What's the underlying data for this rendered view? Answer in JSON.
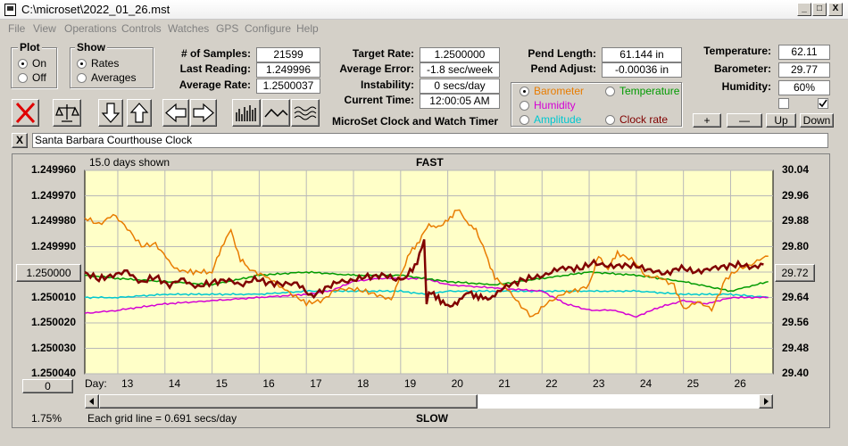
{
  "window": {
    "title": "C:\\microset\\2022_01_26.mst",
    "min": "_",
    "max": "□",
    "close": "X"
  },
  "menu": [
    "File",
    "View",
    "Operations",
    "Controls",
    "Watches",
    "GPS",
    "Configure",
    "Help"
  ],
  "plot_group": {
    "title": "Plot",
    "on": "On",
    "off": "Off",
    "selected": "On"
  },
  "show_group": {
    "title": "Show",
    "rates": "Rates",
    "averages": "Averages",
    "selected": "Rates"
  },
  "stats": {
    "samples_label": "# of Samples:",
    "samples": "21599",
    "last_reading_label": "Last Reading:",
    "last_reading": "1.249996",
    "avg_rate_label": "Average Rate:",
    "avg_rate": "1.2500037",
    "target_rate_label": "Target Rate:",
    "target_rate": "1.2500000",
    "avg_error_label": "Average Error:",
    "avg_error": "-1.8 sec/week",
    "instability_label": "Instability:",
    "instability": "0 secs/day",
    "current_time_label": "Current Time:",
    "current_time": "12:00:05 AM",
    "pend_length_label": "Pend Length:",
    "pend_length": "61.144 in",
    "pend_adjust_label": "Pend Adjust:",
    "pend_adjust": "-0.00036 in",
    "temperature_label": "Temperature:",
    "temperature": "62.11",
    "barometer_label": "Barometer:",
    "barometer": "29.77",
    "humidity_label": "Humidity:",
    "humidity": "60%"
  },
  "app_caption": "MicroSet Clock and Watch Timer",
  "sensor_select": {
    "selected": "Barometer",
    "options": [
      {
        "label": "Barometer",
        "color": "#e87c00"
      },
      {
        "label": "Temperature",
        "color": "#009a00"
      },
      {
        "label": "Humidity",
        "color": "#d400d4"
      },
      {
        "label": "Amplitude",
        "color": "#00c8d0"
      },
      {
        "label": "Clock rate",
        "color": "#800000"
      }
    ]
  },
  "scale_buttons": {
    "plus": "+",
    "minus": "—",
    "up": "Up",
    "down": "Down"
  },
  "watch_name": "Santa Barbara Courthouse Clock",
  "clear_name": "X",
  "chart": {
    "days_shown": "15.0 days shown",
    "top_label": "FAST",
    "bottom_label": "SLOW",
    "grid_note": "Each grid line = 0.691 secs/day",
    "percent": "1.75%",
    "left_button": "1.250000",
    "right_button": "29.72",
    "zero_button": "0",
    "day_label": "Day:"
  },
  "chart_data": {
    "type": "line",
    "x_label": "Day:",
    "x_ticks": [
      13,
      14,
      15,
      16,
      17,
      18,
      19,
      20,
      21,
      22,
      23,
      24,
      25,
      26
    ],
    "xlim": [
      12.3,
      26.9
    ],
    "y_left_ticks": [
      "1.249960",
      "1.249970",
      "1.249980",
      "1.249990",
      "1.250000",
      "1.250010",
      "1.250020",
      "1.250030",
      "1.250040"
    ],
    "y_left_lim": [
      1.24996,
      1.25004
    ],
    "y_left_inverted": true,
    "y_right_ticks": [
      "30.04",
      "29.96",
      "29.88",
      "29.80",
      "29.72",
      "29.64",
      "29.56",
      "29.48",
      "29.40"
    ],
    "y_right_lim": [
      29.4,
      30.04
    ],
    "series": [
      {
        "name": "Barometer",
        "axis": "right",
        "color": "#e87c00",
        "x": [
          12.3,
          12.6,
          12.9,
          13.2,
          13.5,
          13.8,
          14.2,
          14.6,
          15.0,
          15.2,
          15.4,
          15.6,
          15.8,
          16.2,
          16.6,
          17.0,
          17.3,
          17.6,
          17.9,
          18.2,
          18.5,
          18.8,
          19.0,
          19.2,
          19.4,
          19.6,
          19.8,
          20.0,
          20.2,
          20.4,
          20.6,
          20.8,
          21.0,
          21.2,
          21.5,
          21.8,
          22.1,
          22.4,
          22.7,
          23.0,
          23.2,
          23.4,
          23.6,
          23.9,
          24.2,
          24.5,
          24.8,
          25.0,
          25.3,
          25.6,
          25.9,
          26.2,
          26.5,
          26.8
        ],
        "y": [
          29.89,
          29.87,
          29.9,
          29.86,
          29.8,
          29.81,
          29.73,
          29.72,
          29.72,
          29.8,
          29.85,
          29.76,
          29.73,
          29.7,
          29.66,
          29.62,
          29.63,
          29.66,
          29.67,
          29.66,
          29.65,
          29.63,
          29.71,
          29.78,
          29.82,
          29.87,
          29.86,
          29.88,
          29.92,
          29.88,
          29.85,
          29.78,
          29.7,
          29.68,
          29.62,
          29.58,
          29.62,
          29.65,
          29.66,
          29.68,
          29.77,
          29.73,
          29.78,
          29.76,
          29.71,
          29.7,
          29.68,
          29.6,
          29.63,
          29.6,
          29.7,
          29.73,
          29.75,
          29.77
        ]
      },
      {
        "name": "Temperature",
        "axis": "right",
        "color": "#009a00",
        "x": [
          12.3,
          13,
          14,
          15,
          16,
          17,
          18,
          19,
          20,
          21,
          22,
          23,
          24,
          25,
          26,
          26.8
        ],
        "y": [
          29.71,
          29.7,
          29.69,
          29.68,
          29.71,
          29.72,
          29.71,
          29.71,
          29.69,
          29.68,
          29.7,
          29.72,
          29.71,
          29.69,
          29.66,
          29.69
        ]
      },
      {
        "name": "Humidity",
        "axis": "right",
        "color": "#d400d4",
        "x": [
          12.3,
          13,
          14,
          15,
          16,
          17,
          17.5,
          18,
          18.5,
          19,
          19.5,
          20,
          21,
          22,
          22.5,
          23,
          23.5,
          24,
          24.5,
          25,
          25.5,
          26,
          26.8
        ],
        "y": [
          29.59,
          29.6,
          29.62,
          29.63,
          29.64,
          29.65,
          29.66,
          29.69,
          29.7,
          29.7,
          29.7,
          29.68,
          29.67,
          29.66,
          29.62,
          29.6,
          29.6,
          29.58,
          29.61,
          29.63,
          29.62,
          29.64,
          29.64
        ]
      },
      {
        "name": "Amplitude",
        "axis": "right",
        "color": "#00c8d0",
        "x": [
          12.3,
          13,
          14,
          15,
          16,
          17,
          18,
          19,
          19.5,
          20,
          21,
          22,
          23,
          24,
          25,
          26,
          26.8
        ],
        "y": [
          29.64,
          29.64,
          29.65,
          29.65,
          29.65,
          29.66,
          29.66,
          29.66,
          29.65,
          29.66,
          29.66,
          29.66,
          29.66,
          29.66,
          29.65,
          29.65,
          29.64
        ]
      },
      {
        "name": "Clock rate",
        "axis": "left",
        "color": "#800000",
        "x": [
          12.3,
          12.6,
          12.9,
          13.2,
          13.5,
          13.8,
          14.1,
          14.4,
          14.7,
          15.0,
          15.3,
          15.6,
          15.9,
          16.2,
          16.5,
          16.8,
          17.1,
          17.4,
          17.7,
          18.0,
          18.3,
          18.6,
          18.9,
          19.1,
          19.3,
          19.5,
          19.55,
          19.6,
          19.8,
          20.0,
          20.2,
          20.4,
          20.6,
          20.8,
          21.0,
          21.3,
          21.6,
          21.9,
          22.2,
          22.5,
          22.8,
          23.1,
          23.4,
          23.7,
          24.0,
          24.3,
          24.6,
          24.9,
          25.2,
          25.5,
          25.8,
          26.1,
          26.4,
          26.7
        ],
        "y": [
          1.25,
          1.250003,
          1.250001,
          1.25,
          1.250004,
          1.250002,
          1.250005,
          1.250003,
          1.250006,
          1.250004,
          1.250003,
          1.250005,
          1.250003,
          1.250004,
          1.250005,
          1.250004,
          1.25001,
          1.250006,
          1.250004,
          1.250003,
          1.250002,
          1.250001,
          1.250003,
          1.250002,
          1.249998,
          1.249988,
          1.250012,
          1.250008,
          1.25001,
          1.250014,
          1.250012,
          1.250008,
          1.250009,
          1.250011,
          1.250009,
          1.250005,
          1.250003,
          1.250002,
          1.25,
          1.249998,
          1.249999,
          1.249996,
          1.249998,
          1.249997,
          1.249998,
          1.249999,
          1.250001,
          1.249998,
          1.25,
          1.249999,
          1.249998,
          1.249997,
          1.249998,
          1.249997
        ]
      }
    ]
  }
}
